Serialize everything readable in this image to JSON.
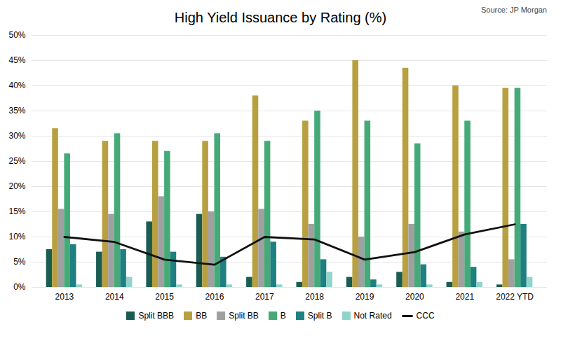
{
  "chart_data": {
    "type": "bar",
    "title": "High Yield Issuance by Rating (%)",
    "annotations": [
      "Source: JP Morgan"
    ],
    "categories": [
      "2013",
      "2014",
      "2015",
      "2016",
      "2017",
      "2018",
      "2019",
      "2020",
      "2021",
      "2022 YTD"
    ],
    "series": [
      {
        "name": "Split BBB",
        "color": "#1a5c52",
        "values": [
          7.5,
          7.0,
          13.0,
          14.5,
          2.0,
          1.0,
          2.0,
          3.0,
          1.0,
          0.5
        ]
      },
      {
        "name": "BB",
        "color": "#b8a040",
        "values": [
          31.5,
          29.0,
          29.0,
          29.0,
          38.0,
          33.0,
          45.0,
          43.5,
          40.0,
          39.5
        ]
      },
      {
        "name": "Split BB",
        "color": "#a0a0a0",
        "values": [
          15.5,
          14.5,
          18.0,
          15.0,
          15.5,
          12.5,
          10.0,
          12.5,
          11.0,
          5.5
        ]
      },
      {
        "name": "B",
        "color": "#45aa78",
        "values": [
          26.5,
          30.5,
          27.0,
          30.5,
          29.0,
          35.0,
          33.0,
          28.5,
          33.0,
          39.5
        ]
      },
      {
        "name": "Split B",
        "color": "#1e8080",
        "values": [
          8.5,
          7.5,
          7.0,
          6.0,
          9.0,
          5.5,
          1.5,
          4.5,
          4.0,
          12.5
        ]
      },
      {
        "name": "Not Rated",
        "color": "#90d4cc",
        "values": [
          0.5,
          2.0,
          0.5,
          0.5,
          0.5,
          3.0,
          0.5,
          0.5,
          1.0,
          2.0
        ]
      },
      {
        "name": "CCC",
        "type": "line",
        "color": "#111111",
        "values": [
          10.0,
          9.0,
          5.5,
          4.5,
          10.0,
          9.5,
          5.5,
          7.0,
          10.5,
          12.5
        ]
      }
    ],
    "ylim": [
      0,
      50
    ],
    "yticks": [
      {
        "value": 0,
        "label": "0%"
      },
      {
        "value": 5,
        "label": "5%"
      },
      {
        "value": 10,
        "label": "10%"
      },
      {
        "value": 15,
        "label": "15%"
      },
      {
        "value": 20,
        "label": "20%"
      },
      {
        "value": 25,
        "label": "25%"
      },
      {
        "value": 30,
        "label": "30%"
      },
      {
        "value": 35,
        "label": "35%"
      },
      {
        "value": 40,
        "label": "40%"
      },
      {
        "value": 45,
        "label": "45%"
      },
      {
        "value": 50,
        "label": "50%"
      }
    ],
    "grid": true,
    "legend": "bottom"
  }
}
